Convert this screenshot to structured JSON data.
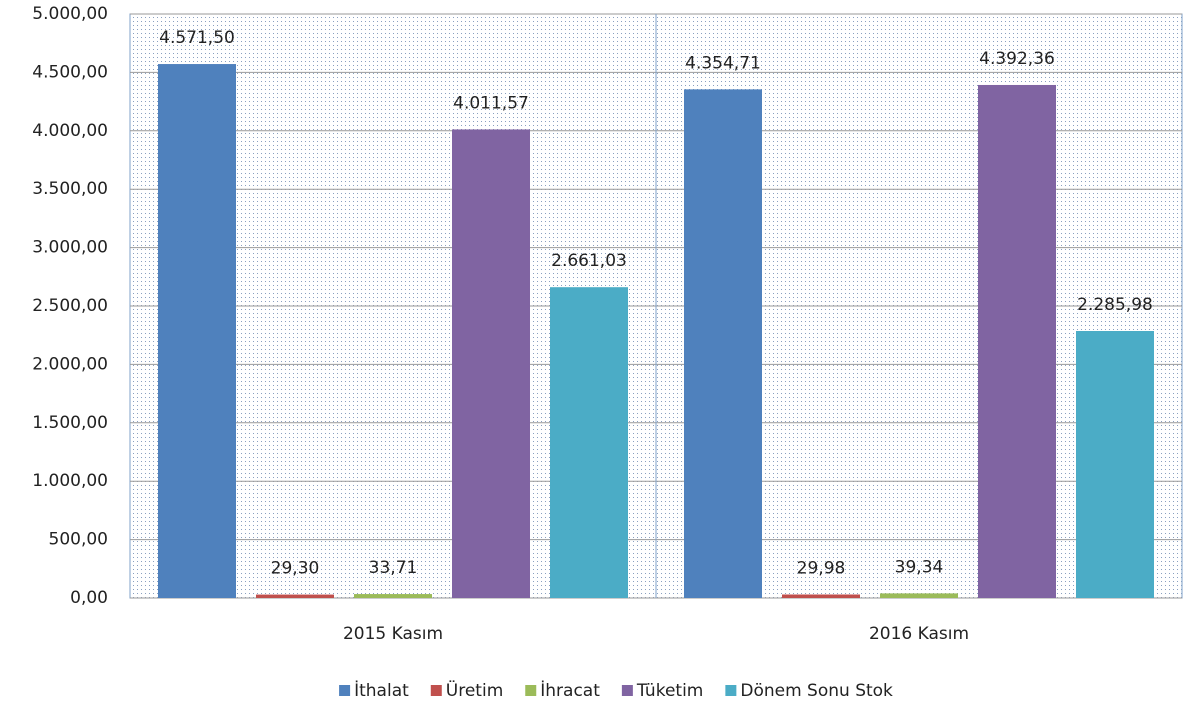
{
  "chart_data": {
    "type": "bar",
    "categories": [
      "2015 Kasım",
      "2016 Kasım"
    ],
    "series": [
      {
        "name": "İthalat",
        "color": "#4f81bd",
        "values": [
          4571.5,
          4354.71
        ],
        "value_labels": [
          "4.571,50",
          "4.354,71"
        ]
      },
      {
        "name": "Üretim",
        "color": "#c0504d",
        "values": [
          29.3,
          29.98
        ],
        "value_labels": [
          "29,30",
          "29,98"
        ]
      },
      {
        "name": "İhracat",
        "color": "#9bbb59",
        "values": [
          33.71,
          39.34
        ],
        "value_labels": [
          "33,71",
          "39,34"
        ]
      },
      {
        "name": "Tüketim",
        "color": "#8064a2",
        "values": [
          4011.57,
          4392.36
        ],
        "value_labels": [
          "4.011,57",
          "4.392,36"
        ]
      },
      {
        "name": "Dönem Sonu Stok",
        "color": "#4bacc6",
        "values": [
          2661.03,
          2285.98
        ],
        "value_labels": [
          "2.661,03",
          "2.285,98"
        ]
      }
    ],
    "ylim": [
      0,
      5000
    ],
    "yticks": [
      {
        "value": 0,
        "label": "0,00"
      },
      {
        "value": 500,
        "label": "500,00"
      },
      {
        "value": 1000,
        "label": "1.000,00"
      },
      {
        "value": 1500,
        "label": "1.500,00"
      },
      {
        "value": 2000,
        "label": "2.000,00"
      },
      {
        "value": 2500,
        "label": "2.500,00"
      },
      {
        "value": 3000,
        "label": "3.000,00"
      },
      {
        "value": 3500,
        "label": "3.500,00"
      },
      {
        "value": 4000,
        "label": "4.000,00"
      },
      {
        "value": 4500,
        "label": "4.500,00"
      },
      {
        "value": 5000,
        "label": "5.000,00"
      }
    ],
    "grid": true,
    "legend": "bottom"
  }
}
